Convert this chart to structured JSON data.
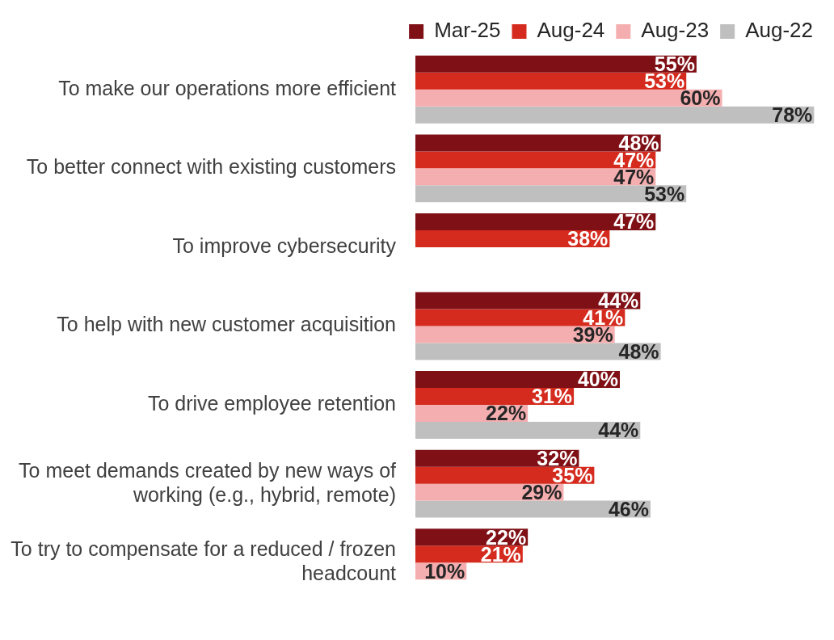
{
  "chart_data": {
    "type": "bar",
    "orientation": "horizontal",
    "categories": [
      "To make our operations more efficient",
      "To better connect with existing customers",
      "To improve cybersecurity",
      "To help with new customer acquisition",
      "To drive employee retention",
      "To meet demands created by new ways of working (e.g., hybrid, remote)",
      "To try to compensate for a reduced / frozen headcount"
    ],
    "series": [
      {
        "name": "Mar-25",
        "color": "#7f1016",
        "values": [
          55,
          48,
          47,
          44,
          40,
          32,
          22
        ],
        "value_labels": [
          "55%",
          "48%",
          "47%",
          "44%",
          "40%",
          "32%",
          "22%"
        ]
      },
      {
        "name": "Aug-24",
        "color": "#d52b1e",
        "values": [
          53,
          47,
          38,
          41,
          31,
          35,
          21
        ],
        "value_labels": [
          "53%",
          "47%",
          "38%",
          "41%",
          "31%",
          "35%",
          "21%"
        ]
      },
      {
        "name": "Aug-23",
        "color": "#f4aeb0",
        "values": [
          60,
          47,
          null,
          39,
          22,
          29,
          10
        ],
        "value_labels": [
          "60%",
          "47%",
          null,
          "39%",
          "22%",
          "29%",
          "10%"
        ]
      },
      {
        "name": "Aug-22",
        "color": "#bfbfbf",
        "values": [
          78,
          53,
          null,
          48,
          44,
          46,
          null
        ],
        "value_labels": [
          "78%",
          "53%",
          null,
          "48%",
          "44%",
          "46%",
          null
        ]
      }
    ],
    "legend": "top",
    "grid": false,
    "tick_labels": "y"
  }
}
